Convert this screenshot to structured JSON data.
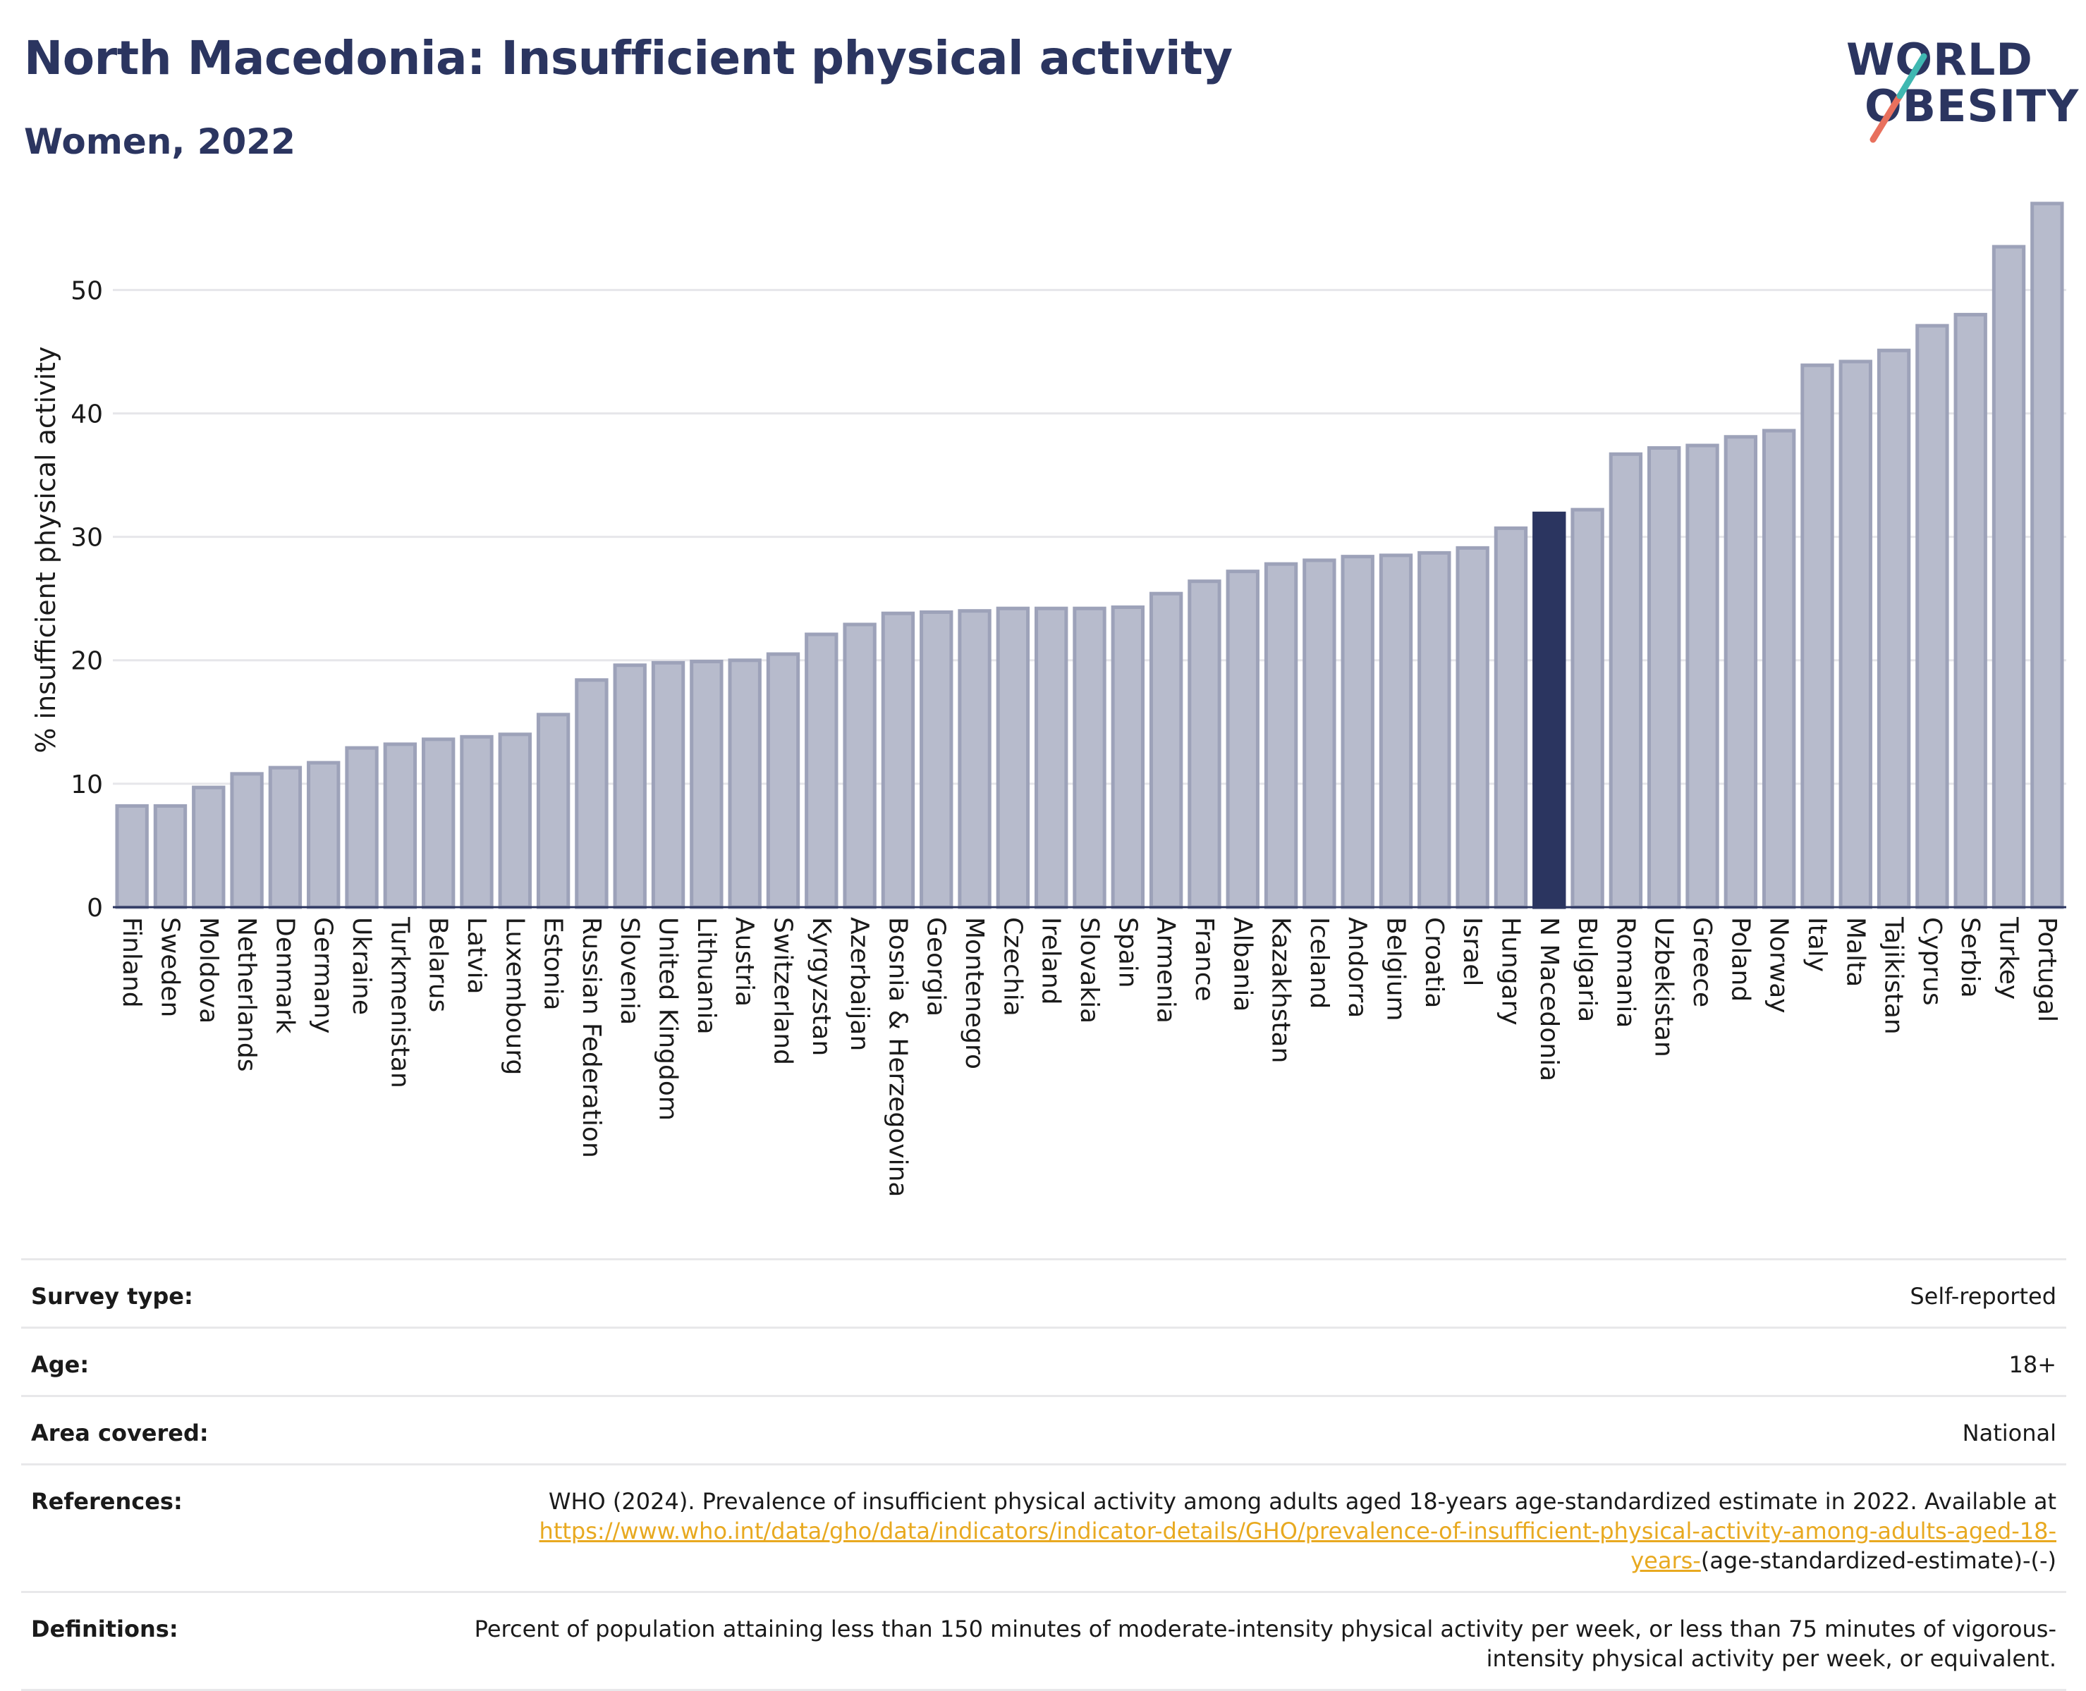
{
  "header": {
    "title": "North Macedonia: Insufficient physical activity",
    "subtitle": "Women, 2022",
    "logo_line1": "WORLD",
    "logo_line2": "OBESITY"
  },
  "colors": {
    "bar": "#b7bbcc",
    "bar_stroke": "#9da2b9",
    "highlight": "#2b3560",
    "grid": "#e6e6ea",
    "logo_teal": "#3fb8b1",
    "logo_coral": "#e8705d"
  },
  "chart_data": {
    "type": "bar",
    "title": "North Macedonia: Insufficient physical activity",
    "subtitle": "Women, 2022",
    "xlabel": "",
    "ylabel": "% insufficient physical activity",
    "ylim": [
      0,
      57.5
    ],
    "yticks": [
      0,
      10,
      20,
      30,
      40,
      50
    ],
    "grid": true,
    "legend": "none",
    "highlight": "N Macedonia",
    "categories": [
      "Finland",
      "Sweden",
      "Moldova",
      "Netherlands",
      "Denmark",
      "Germany",
      "Ukraine",
      "Turkmenistan",
      "Belarus",
      "Latvia",
      "Luxembourg",
      "Estonia",
      "Russian Federation",
      "Slovenia",
      "United Kingdom",
      "Lithuania",
      "Austria",
      "Switzerland",
      "Kyrgyzstan",
      "Azerbaijan",
      "Bosnia & Herzegovina",
      "Georgia",
      "Montenegro",
      "Czechia",
      "Ireland",
      "Slovakia",
      "Spain",
      "Armenia",
      "France",
      "Albania",
      "Kazakhstan",
      "Iceland",
      "Andorra",
      "Belgium",
      "Croatia",
      "Israel",
      "Hungary",
      "N Macedonia",
      "Bulgaria",
      "Romania",
      "Uzbekistan",
      "Greece",
      "Poland",
      "Norway",
      "Italy",
      "Malta",
      "Tajikistan",
      "Cyprus",
      "Serbia",
      "Turkey",
      "Portugal"
    ],
    "values": [
      8.2,
      8.2,
      9.7,
      10.8,
      11.3,
      11.7,
      12.9,
      13.2,
      13.6,
      13.8,
      14.0,
      15.6,
      18.4,
      19.6,
      19.8,
      19.9,
      20.0,
      20.5,
      22.1,
      22.9,
      23.8,
      23.9,
      24.0,
      24.2,
      24.2,
      24.2,
      24.3,
      25.4,
      26.4,
      27.2,
      27.8,
      28.1,
      28.4,
      28.5,
      28.7,
      29.1,
      30.7,
      31.9,
      32.2,
      36.7,
      37.2,
      37.4,
      38.1,
      38.6,
      43.9,
      44.2,
      45.1,
      47.1,
      48.0,
      53.5,
      57.0
    ]
  },
  "meta": {
    "rows": [
      {
        "label": "Survey type:",
        "value": "Self-reported"
      },
      {
        "label": "Age:",
        "value": "18+"
      },
      {
        "label": "Area covered:",
        "value": "National"
      },
      {
        "label": "References:",
        "value": "WHO (2024). Prevalence of insufficient physical activity among adults aged 18-years age-standardized estimate in 2022. Available at",
        "link": "https://www.who.int/data/gho/data/indicators/indicator-details/GHO/prevalence-of-insufficient-physical-activity-among-adults-aged-18-years-",
        "suffix": "(age-standardized-estimate)-(-)"
      },
      {
        "label": "Definitions:",
        "value": "Percent of population attaining less than 150 minutes of moderate-intensity physical activity per week, or less than 75 minutes of vigorous-intensity physical activity per week, or equivalent."
      }
    ]
  }
}
